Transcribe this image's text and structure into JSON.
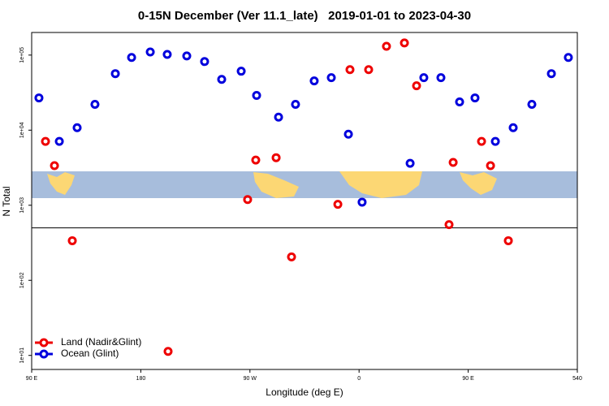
{
  "chart_data": {
    "type": "scatter",
    "title": "0-15N December (Ver 11.1_late)   2019-01-01 to 2023-04-30",
    "xlabel": "Longitude (deg E)",
    "ylabel": "N Total",
    "log_y": true,
    "legend": "bottomleft",
    "hline": 500,
    "xlim": [
      90,
      540
    ],
    "ylim": [
      6.5,
      200000
    ],
    "xticks": [
      {
        "value": 90,
        "label": "90 E"
      },
      180,
      {
        "value": 270,
        "label": "90 W"
      },
      {
        "value": 360,
        "label": "0"
      },
      {
        "value": 450,
        "label": "90 E"
      },
      540
    ],
    "yticks": [
      {
        "value": 10,
        "label": "1e+01"
      },
      {
        "value": 100,
        "label": "1e+02"
      },
      {
        "value": 1000,
        "label": "1e+03"
      },
      {
        "value": 10000,
        "label": "1e+04"
      },
      {
        "value": 100000,
        "label": "1e+05"
      }
    ],
    "series": [
      {
        "name": "Land (Nadir&Glint)",
        "color": "#ee0000",
        "x": [
          101.4,
          108.8,
          123.5,
          202.5,
          268.1,
          274.8,
          291.6,
          304.3,
          342.5,
          352.5,
          367.9,
          382.6,
          397.4,
          407.4,
          434.2,
          437.6,
          461.0,
          468.4,
          483.1
        ],
        "values": [
          7080,
          3370,
          337,
          11.3,
          1190,
          4000,
          4300,
          205,
          1030,
          64000,
          64000,
          131000,
          145000,
          39000,
          552,
          3720,
          7080,
          3370,
          337
        ]
      },
      {
        "name": "Ocean (Glint)",
        "color": "#0000dd",
        "x": [
          96.0,
          112.8,
          127.5,
          142.2,
          159.0,
          172.4,
          187.8,
          201.8,
          217.9,
          232.6,
          246.7,
          262.8,
          275.5,
          293.6,
          307.6,
          323.0,
          337.1,
          351.2,
          362.5,
          402.1,
          413.4,
          427.5,
          442.9,
          455.6,
          472.4,
          487.1,
          502.5,
          518.6,
          532.6
        ],
        "values": [
          26900,
          7080,
          10800,
          22100,
          56600,
          92900,
          110000,
          102000,
          97500,
          82000,
          47500,
          61000,
          29000,
          14900,
          22100,
          45300,
          50000,
          8830,
          1100,
          3620,
          50000,
          50000,
          23800,
          26900,
          7080,
          10800,
          22100,
          56600,
          92900
        ]
      }
    ]
  }
}
